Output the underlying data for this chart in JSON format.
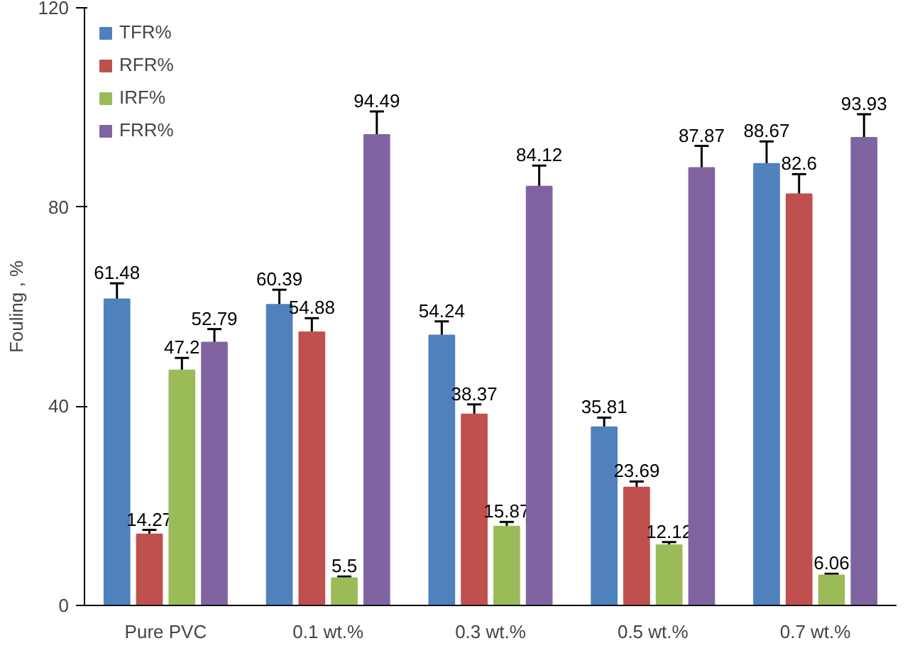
{
  "chart_data": {
    "type": "bar",
    "ylabel": "Fouling , %",
    "categories": [
      "Pure PVC",
      "0.1 wt.%",
      "0.3 wt.%",
      "0.5 wt.%",
      "0.7 wt.%"
    ],
    "series": [
      {
        "name": "TFR%",
        "color": "#4f81bd",
        "values": [
          61.48,
          60.39,
          54.24,
          35.81,
          88.67
        ],
        "errors": [
          3.2,
          3,
          2.8,
          1.9,
          4.5
        ]
      },
      {
        "name": "RFR%",
        "color": "#c0504d",
        "values": [
          14.27,
          54.88,
          38.37,
          23.69,
          82.6
        ],
        "errors": [
          0.9,
          2.8,
          2,
          1.2,
          4
        ]
      },
      {
        "name": "IRF%",
        "color": "#9bbb59",
        "values": [
          47.2,
          5.5,
          15.87,
          12.12,
          6.06
        ],
        "errors": [
          2.5,
          0.3,
          0.9,
          0.6,
          0.3
        ]
      },
      {
        "name": "FRR%",
        "color": "#8064a2",
        "values": [
          52.79,
          94.49,
          84.12,
          87.87,
          93.93
        ],
        "errors": [
          2.7,
          4.7,
          4.2,
          4.4,
          4.7
        ]
      }
    ],
    "ylim": [
      0,
      120
    ],
    "yticks": [
      0,
      40,
      80,
      120
    ],
    "data_labels": true,
    "legend": "top left",
    "grid": false
  }
}
